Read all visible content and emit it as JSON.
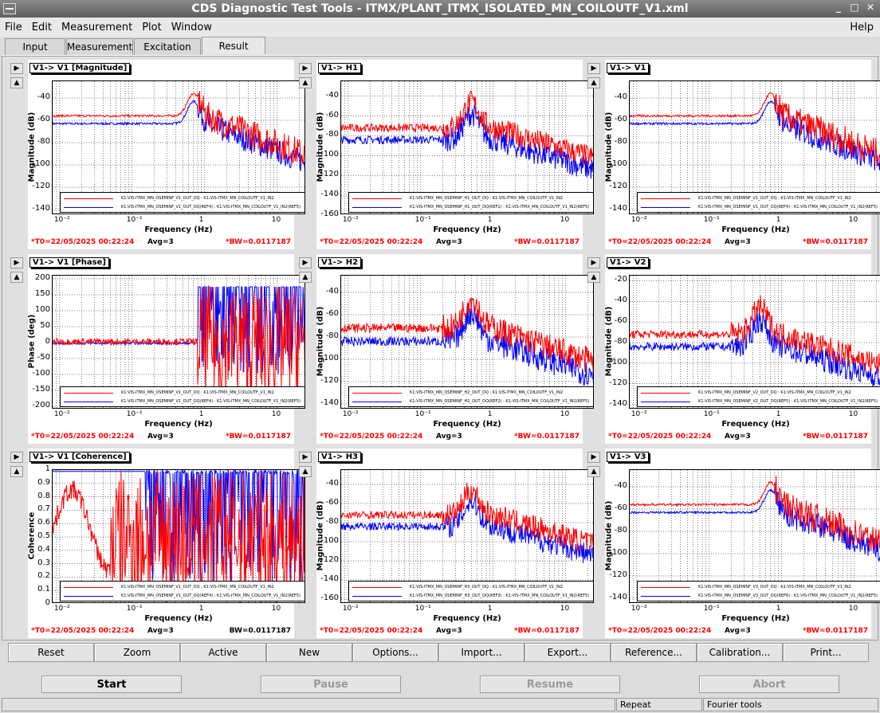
{
  "window": {
    "title": "CDS Diagnostic Test Tools - ITMX/PLANT_ITMX_ISOLATED_MN_COILOUTF_V1.xml",
    "minimize": "_",
    "maximize": "□",
    "close": "✕"
  },
  "menu": {
    "file": "File",
    "edit": "Edit",
    "measurement": "Measurement",
    "plot": "Plot",
    "window": "Window",
    "help": "Help"
  },
  "tabs": [
    "Input",
    "Measurement",
    "Excitation",
    "Result"
  ],
  "active_tab": "Result",
  "colors": {
    "red": "#ff0000",
    "blue": "#0000ff"
  },
  "plots": [
    {
      "title": "V1-> V1 [Magnitude]",
      "ylabel": "Magnitude (dB)",
      "yticks": [
        "-40",
        "-60",
        "-80",
        "-100",
        "-120",
        "-140"
      ],
      "ylim": [
        -145,
        -25
      ],
      "xlabel": "Frequency (Hz)",
      "t0": "*T0=22/05/2025 00:22:24",
      "avg": "Avg=3",
      "bw": "*BW=0.0117187",
      "bw_red": true,
      "legend": [
        "K1:VIS-ITMX_MN_OSEMINF_V1_OUT_DQ : K1:VIS-ITMX_MN_COILOUTF_V1_IN2",
        "K1:VIS-ITMX_MN_OSEMINF_V1_OUT_DQ(REF4) : K1:VIS-ITMX_MN_COILOUTF_V1_IN2(REF5)"
      ],
      "kind": "mag1"
    },
    {
      "title": "V1-> H1",
      "ylabel": "Magnitude (dB)",
      "yticks": [
        "-40",
        "-60",
        "-80",
        "-100",
        "-120",
        "-140",
        "-160"
      ],
      "ylim": [
        -160,
        -25
      ],
      "xlabel": "Frequency (Hz)",
      "t0": "*T0=22/05/2025 00:22:24",
      "avg": "Avg=3",
      "bw": "*BW=0.0117187",
      "bw_red": true,
      "legend": [
        "K1:VIS-ITMX_MN_OSEMINF_H1_OUT_DQ : K1:VIS-ITMX_MN_COILOUTF_V1_IN2",
        "K1:VIS-ITMX_MN_OSEMINF_H1_OUT_DQ(REF1) : K1:VIS-ITMX_MN_COILOUTF_V1_IN2(REF5)"
      ],
      "kind": "magx"
    },
    {
      "title": "V1-> V1",
      "ylabel": "Magnitude (dB)",
      "yticks": [
        "-40",
        "-60",
        "-80",
        "-100",
        "-120",
        "-140"
      ],
      "ylim": [
        -145,
        -25
      ],
      "xlabel": "Frequency (Hz)",
      "t0": "*T0=22/05/2025 00:22:24",
      "avg": "Avg=3",
      "bw": "*BW=0.0117187",
      "bw_red": true,
      "legend": [
        "K1:VIS-ITMX_MN_OSEMINF_V1_OUT_DQ : K1:VIS-ITMX_MN_COILOUTF_V1_IN2",
        "K1:VIS-ITMX_MN_OSEMINF_V1_OUT_DQ(REF4) : K1:VIS-ITMX_MN_COILOUTF_V1_IN2(REF5)"
      ],
      "kind": "mag1"
    },
    {
      "title": "V1-> V1 [Phase]",
      "ylabel": "Phase (deg)",
      "yticks": [
        "200",
        "150",
        "100",
        "50",
        "0",
        "-50",
        "-100",
        "-150",
        "-200"
      ],
      "ylim": [
        -210,
        210
      ],
      "xlabel": "Frequency (Hz)",
      "t0": "*T0=22/05/2025 00:22:24",
      "avg": "Avg=3",
      "bw": "*BW=0.0117187",
      "bw_red": true,
      "legend": [
        "K1:VIS-ITMX_MN_OSEMINF_V1_OUT_DQ : K1:VIS-ITMX_MN_COILOUTF_V1_IN2",
        "K1:VIS-ITMX_MN_OSEMINF_V1_OUT_DQ(REF4) : K1:VIS-ITMX_MN_COILOUTF_V1_IN2(REF5)"
      ],
      "kind": "phase"
    },
    {
      "title": "V1-> H2",
      "ylabel": "Magnitude (dB)",
      "yticks": [
        "-40",
        "-60",
        "-80",
        "-100",
        "-120",
        "-140"
      ],
      "ylim": [
        -145,
        -25
      ],
      "xlabel": "Frequency (Hz)",
      "t0": "*T0=22/05/2025 00:22:24",
      "avg": "Avg=3",
      "bw": "*BW=0.0117187",
      "bw_red": true,
      "legend": [
        "K1:VIS-ITMX_MN_OSEMINF_H2_OUT_DQ : K1:VIS-ITMX_MN_COILOUTF_V1_IN2",
        "K1:VIS-ITMX_MN_OSEMINF_H2_OUT_DQ(REF2) : K1:VIS-ITMX_MN_COILOUTF_V1_IN2(REF5)"
      ],
      "kind": "magx"
    },
    {
      "title": "V1-> V2",
      "ylabel": "Magnitude (dB)",
      "yticks": [
        "-20",
        "-40",
        "-60",
        "-80",
        "-100",
        "-120",
        "-140"
      ],
      "ylim": [
        -145,
        -15
      ],
      "xlabel": "Frequency (Hz)",
      "t0": "*T0=22/05/2025 00:22:24",
      "avg": "Avg=3",
      "bw": "*BW=0.0117187",
      "bw_red": true,
      "legend": [
        "K1:VIS-ITMX_MN_OSEMINF_V2_OUT_DQ : K1:VIS-ITMX_MN_COILOUTF_V1_IN2",
        "K1:VIS-ITMX_MN_OSEMINF_V2_OUT_DQ(REF5) : K1:VIS-ITMX_MN_COILOUTF_V1_IN2(REF5)"
      ],
      "kind": "magx"
    },
    {
      "title": "V1-> V1 [Coherence]",
      "ylabel": "Coherence",
      "yticks": [
        "1",
        "0.9",
        "0.8",
        "0.7",
        "0.6",
        "0.5",
        "0.4",
        "0.3",
        "0.2",
        "0.1",
        "0"
      ],
      "ylim": [
        0,
        1.0
      ],
      "xlabel": "Frequency (Hz)",
      "t0": "*T0=22/05/2025 00:22:24",
      "avg": "Avg=3",
      "bw": "BW=0.0117187",
      "bw_red": false,
      "legend": [
        "K1:VIS-ITMX_MN_OSEMINF_V1_OUT_DQ : K1:VIS-ITMX_MN_COILOUTF_V1_IN2",
        "K1:VIS-ITMX_MN_OSEMINF_V1_OUT_DQ(REF4) : K1:VIS-ITMX_MN_COILOUTF_V1_IN2(REF5)"
      ],
      "kind": "coh"
    },
    {
      "title": "V1-> H3",
      "ylabel": "Magnitude (dB)",
      "yticks": [
        "-40",
        "-60",
        "-80",
        "-100",
        "-120",
        "-140",
        "-160"
      ],
      "ylim": [
        -165,
        -25
      ],
      "xlabel": "Frequency (Hz)",
      "t0": "*T0=22/05/2025 00:22:24",
      "avg": "Avg=3",
      "bw": "*BW=0.0117187",
      "bw_red": true,
      "legend": [
        "K1:VIS-ITMX_MN_OSEMINF_H3_OUT_DQ : K1:VIS-ITMX_MN_COILOUTF_V1_IN2",
        "K1:VIS-ITMX_MN_OSEMINF_H3_OUT_DQ(REF3) : K1:VIS-ITMX_MN_COILOUTF_V1_IN2(REF5)"
      ],
      "kind": "magx"
    },
    {
      "title": "V1-> V3",
      "ylabel": "Magnitude (dB)",
      "yticks": [
        "-40",
        "-60",
        "-80",
        "-100",
        "-120",
        "-140"
      ],
      "ylim": [
        -145,
        -25
      ],
      "xlabel": "Frequency (Hz)",
      "t0": "*T0=22/05/2025 00:22:24",
      "avg": "Avg=3",
      "bw": "*BW=0.0117187",
      "bw_red": true,
      "legend": [
        "K1:VIS-ITMX_MN_OSEMINF_V3_OUT_DQ : K1:VIS-ITMX_MN_COILOUTF_V1_IN2",
        "K1:VIS-ITMX_MN_OSEMINF_V3_OUT_DQ(REF6) : K1:VIS-ITMX_MN_COILOUTF_V1_IN2(REF5)"
      ],
      "kind": "mag1"
    }
  ],
  "xticks": [
    "10⁻²",
    "10⁻¹",
    "1",
    "10"
  ],
  "buttons": [
    "Reset",
    "Zoom",
    "Active",
    "New",
    "Options...",
    "Import...",
    "Export...",
    "Reference...",
    "Calibration...",
    "Print..."
  ],
  "controls": {
    "start": "Start",
    "pause": "Pause",
    "resume": "Resume",
    "abort": "Abort"
  },
  "status": {
    "repeat": "Repeat",
    "fourier": "Fourier tools"
  },
  "chart_data": [
    {
      "type": "line",
      "title": "V1-> V1 [Magnitude]",
      "xlabel": "Frequency (Hz)",
      "ylabel": "Magnitude (dB)",
      "xscale": "log",
      "xlim": [
        0.008,
        25
      ],
      "ylim": [
        -145,
        -25
      ],
      "series": [
        {
          "values": "noisy transfer function, peak ≈ -40 dB near 0.7 Hz"
        }
      ]
    },
    {
      "type": "line",
      "title": "V1-> V1 [Phase]",
      "xlabel": "Frequency (Hz)",
      "ylabel": "Phase (deg)",
      "xscale": "log",
      "xlim": [
        0.008,
        25
      ],
      "ylim": [
        -210,
        210
      ]
    },
    {
      "type": "line",
      "title": "V1-> V1 [Coherence]",
      "xlabel": "Frequency (Hz)",
      "ylabel": "Coherence",
      "xscale": "log",
      "xlim": [
        0.008,
        25
      ],
      "ylim": [
        0,
        1
      ]
    }
  ]
}
